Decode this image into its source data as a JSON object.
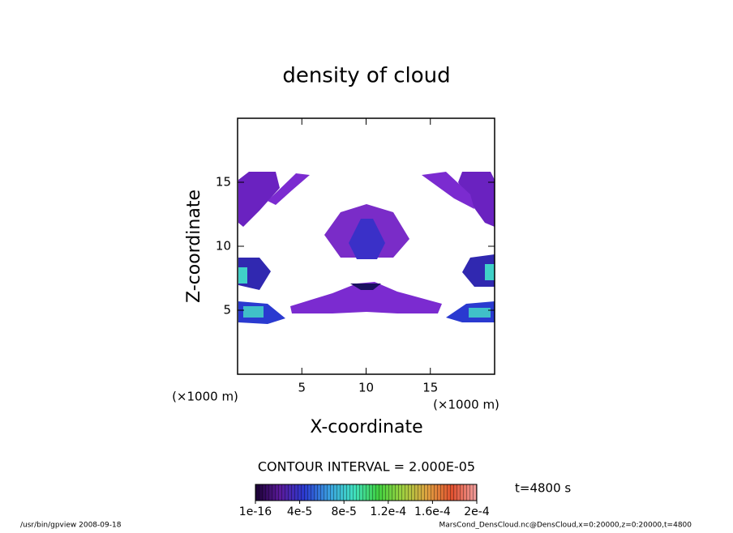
{
  "chart_data": {
    "type": "contour",
    "title": "density of cloud",
    "x_label": "X-coordinate",
    "y_label": "Z-coordinate",
    "x_unit": "(×1000 m)",
    "y_unit": "(×1000 m)",
    "xlim": [
      0,
      20
    ],
    "xticks": [
      5,
      10,
      15
    ],
    "ylim": [
      0,
      20
    ],
    "yticks": [
      5,
      10,
      15
    ],
    "contour_interval": "CONTOUR INTERVAL = 2.000E-05",
    "time": "t=4800 s",
    "colorbar": {
      "lim": [
        1e-16,
        0.0002
      ],
      "ticks": [
        1e-16,
        {
          "value": 4e-05,
          "label": "4e-5"
        },
        {
          "value": 8e-05,
          "label": "8e-5"
        },
        {
          "value": 0.00012,
          "label": "1.2e-4"
        },
        {
          "value": 0.00016,
          "label": "1.6e-4"
        },
        {
          "value": 0.0002,
          "label": "2e-4"
        }
      ],
      "colors": [
        "#1a0033",
        "#5a1a9a",
        "#2a3ad0",
        "#3aa0e0",
        "#40e0c0",
        "#40d040",
        "#a0d040",
        "#e0a040",
        "#e05030",
        "#f0a0a0"
      ]
    },
    "footer_left": "/usr/bin/gpview  2008-09-18",
    "footer_right": "MarsCond_DensCloud.nc@DensCloud,x=0:20000,z=0:20000,t=4800"
  }
}
